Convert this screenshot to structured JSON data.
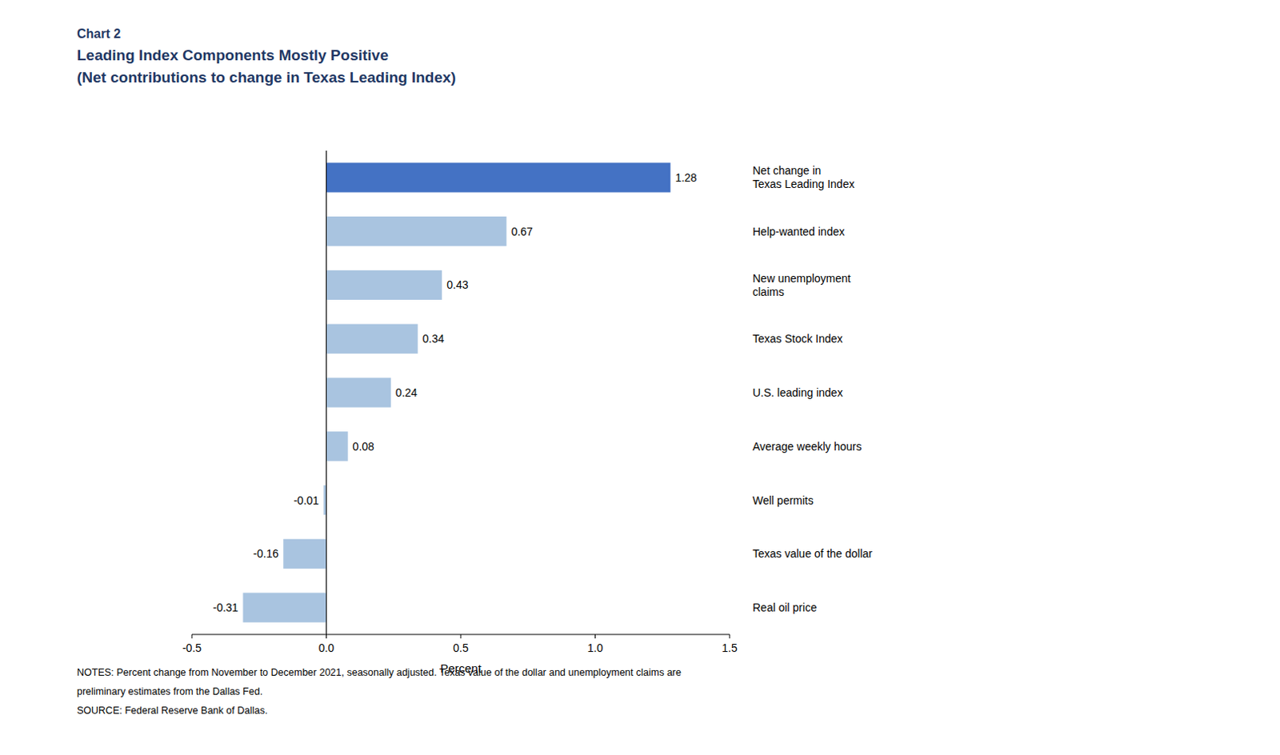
{
  "chart_data": {
    "type": "bar",
    "orientation": "horizontal",
    "title": "Leading Index Components Mostly Positive",
    "subtitle": "(Net contributions to change in Texas Leading Index)",
    "annotations": [
      "Chart 2",
      "NOTES: Percent change from November to December 2021, seasonally adjusted. Texas value of the dollar and unemployment claims are",
      "preliminary estimates from the Dallas Fed.",
      "SOURCE: Federal Reserve Bank of Dallas."
    ],
    "categories": [
      "Net change in\nTexas Leading Index",
      "Help-wanted index",
      "New unemployment\nclaims",
      "Texas Stock Index",
      "U.S. leading index",
      "Average weekly hours",
      "Well permits",
      "Texas value of the dollar",
      "Real oil price"
    ],
    "values": [
      1.28,
      0.67,
      0.43,
      0.34,
      0.24,
      0.08,
      -0.01,
      -0.16,
      -0.31
    ],
    "colors": [
      "#4472c4",
      "#a9c4e0",
      "#a9c4e0",
      "#a9c4e0",
      "#a9c4e0",
      "#a9c4e0",
      "#a9c4e0",
      "#a9c4e0",
      "#a9c4e0"
    ],
    "xlabel": "Percent",
    "xlim": [
      -0.5,
      1.5
    ],
    "xticks": [
      -0.5,
      {
        "value": 0,
        "label": "0.0"
      },
      0.5,
      {
        "value": 1,
        "label": "1.0"
      },
      1.5
    ],
    "grid": false,
    "data_labels": true
  }
}
